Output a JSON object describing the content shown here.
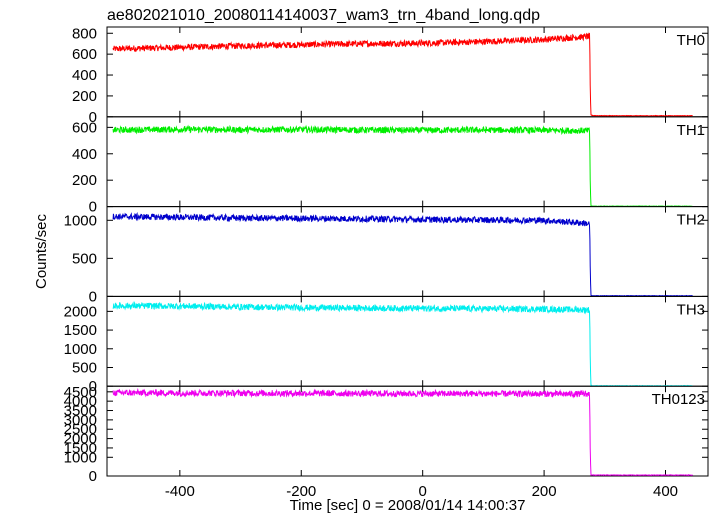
{
  "chart_data": {
    "type": "line",
    "title": "ae802021010_20080114140037_wam3_trn_4band_long.qdp",
    "xlabel": "Time [sec] 0 = 2008/01/14 14:00:37",
    "ylabel": "Counts/sec",
    "xlim": [
      -520,
      470
    ],
    "xticks": [
      -400,
      -200,
      0,
      200,
      400
    ],
    "grid": false,
    "panels": [
      {
        "name": "TH0",
        "color": "#ff0000",
        "ylim": [
          0,
          860
        ],
        "yticks": [
          0,
          200,
          400,
          600,
          800
        ],
        "x": [
          -510,
          -400,
          -300,
          -200,
          -100,
          0,
          100,
          200,
          250,
          275,
          276,
          277,
          280,
          300,
          400,
          445
        ],
        "y": [
          650,
          665,
          680,
          690,
          700,
          705,
          720,
          740,
          760,
          770,
          300,
          18,
          12,
          10,
          10,
          10
        ]
      },
      {
        "name": "TH1",
        "color": "#00ee00",
        "ylim": [
          0,
          680
        ],
        "yticks": [
          0,
          200,
          400,
          600
        ],
        "x": [
          -510,
          -400,
          -300,
          -200,
          -100,
          0,
          100,
          200,
          275,
          276,
          277,
          280,
          300,
          400,
          445
        ],
        "y": [
          580,
          585,
          582,
          584,
          580,
          578,
          580,
          578,
          575,
          200,
          5,
          3,
          3,
          3,
          3
        ]
      },
      {
        "name": "TH2",
        "color": "#0000cc",
        "ylim": [
          0,
          1180
        ],
        "yticks": [
          0,
          500,
          1000
        ],
        "x": [
          -510,
          -400,
          -300,
          -200,
          -100,
          0,
          100,
          200,
          270,
          275,
          276,
          277,
          280,
          300,
          400,
          445
        ],
        "y": [
          1050,
          1040,
          1030,
          1025,
          1020,
          1010,
          1005,
          1000,
          960,
          950,
          400,
          12,
          8,
          8,
          8,
          8
        ]
      },
      {
        "name": "TH3",
        "color": "#00eeee",
        "ylim": [
          0,
          2400
        ],
        "yticks": [
          0,
          500,
          1000,
          1500,
          2000
        ],
        "x": [
          -510,
          -400,
          -300,
          -200,
          -100,
          0,
          100,
          200,
          275,
          276,
          277,
          280,
          300,
          400,
          445
        ],
        "y": [
          2150,
          2140,
          2120,
          2100,
          2090,
          2080,
          2070,
          2060,
          2040,
          800,
          15,
          10,
          10,
          10,
          10
        ]
      },
      {
        "name": "TH0123",
        "color": "#ee00ee",
        "ylim": [
          0,
          4800
        ],
        "yticks": [
          0,
          1000,
          1500,
          2000,
          2500,
          3000,
          3500,
          4000,
          4500
        ],
        "x": [
          -510,
          -400,
          -300,
          -200,
          -100,
          0,
          100,
          200,
          275,
          276,
          277,
          280,
          300,
          400,
          445
        ],
        "y": [
          4450,
          4440,
          4430,
          4420,
          4410,
          4400,
          4400,
          4390,
          4380,
          1500,
          60,
          50,
          50,
          50,
          50
        ]
      }
    ]
  }
}
